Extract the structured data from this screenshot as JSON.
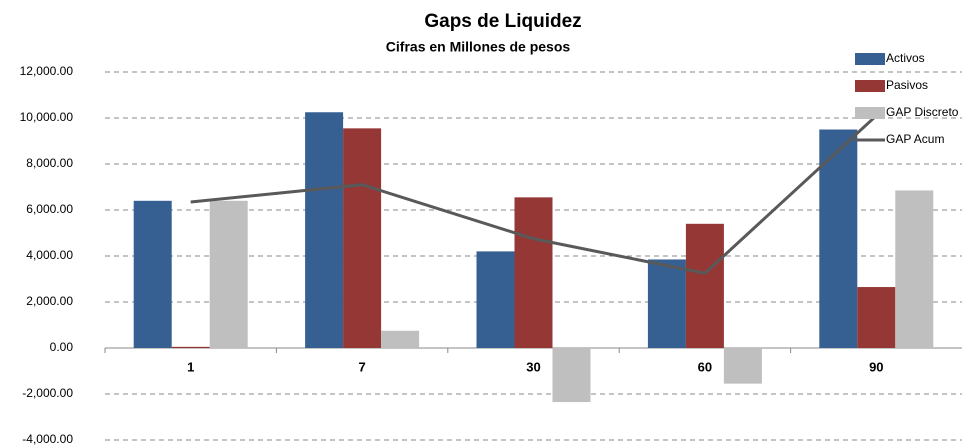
{
  "chart_data": {
    "type": "bar",
    "title": "Gaps de Liquidez",
    "subtitle": "Cifras en Millones de pesos",
    "categories": [
      "1",
      "7",
      "30",
      "60",
      "90"
    ],
    "series": [
      {
        "name": "Activos",
        "color": "#366092",
        "values": [
          6400,
          10250,
          4200,
          3850,
          9500
        ]
      },
      {
        "name": "Pasivos",
        "color": "#953735",
        "values": [
          50,
          9550,
          6550,
          5400,
          2650
        ]
      },
      {
        "name": "GAP Discreto",
        "color": "#bfbfbf",
        "values": [
          6400,
          750,
          -2350,
          -1550,
          6850
        ]
      },
      {
        "name": "GAP Acum",
        "color": "#595959",
        "type": "line",
        "values": [
          6350,
          7100,
          4750,
          3250,
          10100
        ]
      }
    ],
    "ylim": [
      -4000,
      12000
    ],
    "yticks": [
      {
        "value": -4000,
        "label": "-4,000.00"
      },
      {
        "value": -2000,
        "label": "-2,000.00"
      },
      {
        "value": 0,
        "label": "0.00"
      },
      {
        "value": 2000,
        "label": "2,000.00"
      },
      {
        "value": 4000,
        "label": "4,000.00"
      },
      {
        "value": 6000,
        "label": "6,000.00"
      },
      {
        "value": 8000,
        "label": "8,000.00"
      },
      {
        "value": 10000,
        "label": "10,000.00"
      },
      {
        "value": 12000,
        "label": "12,000.00"
      }
    ],
    "grid": true,
    "legend": "top-right"
  }
}
